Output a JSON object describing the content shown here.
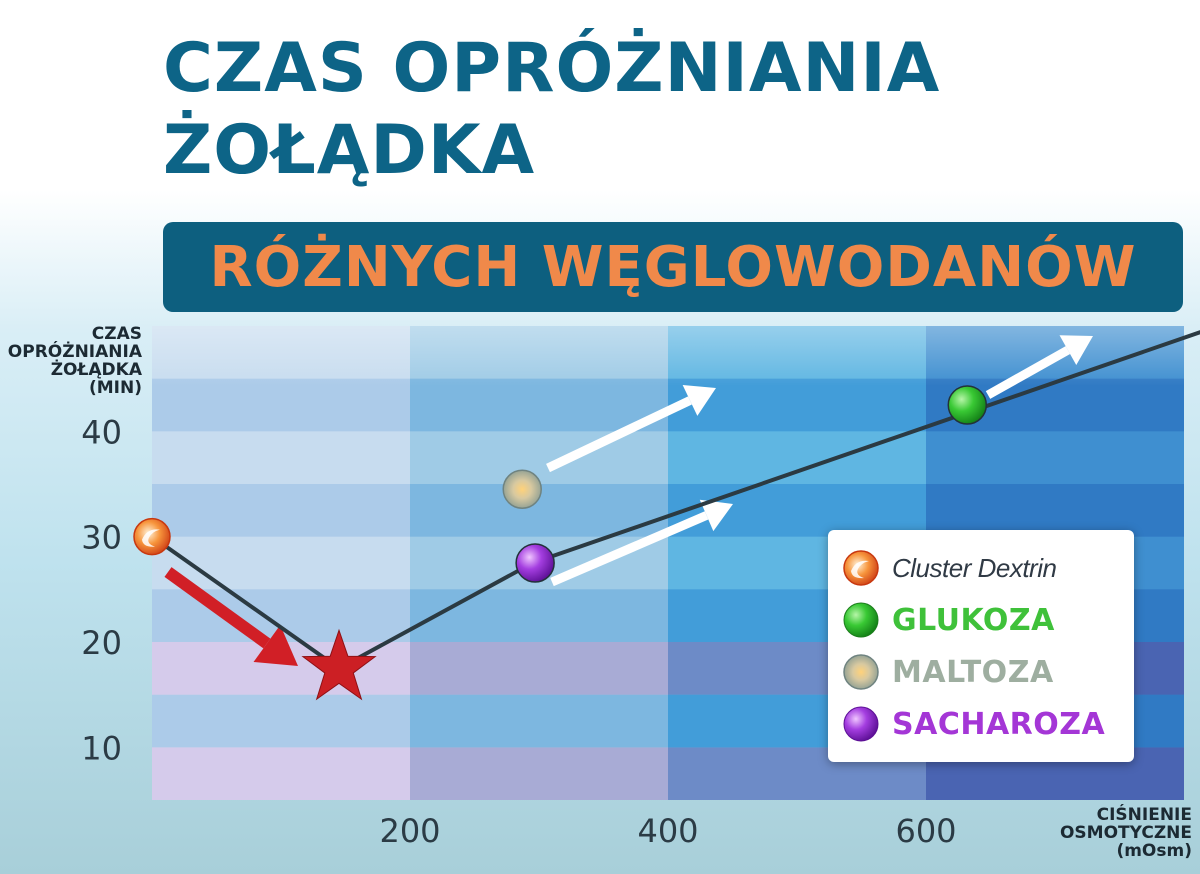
{
  "header": {
    "title": "CZAS OPRÓŻNIANIA\nŻOŁĄDKA",
    "subtitle": "RÓŻNYCH WĘGLOWODANÓW"
  },
  "chart_data": {
    "type": "line",
    "ylabel": "CZAS\nOPRÓŻNIANIA\nŻOŁĄDKA\n(MIN)",
    "xlabel": "CIŚNIENIE\nOSMOTYCZNE\n(mOsm)",
    "xlim": [
      0,
      800
    ],
    "ylim": [
      5,
      50
    ],
    "x_ticks": [
      200,
      400,
      600
    ],
    "y_ticks": [
      10,
      20,
      30,
      40
    ],
    "line": {
      "x": [
        0,
        145,
        295,
        850
      ],
      "y": [
        30,
        17.5,
        27.5,
        51
      ]
    },
    "points": [
      {
        "series": "Cluster Dextrin",
        "x": 0,
        "y": 30,
        "marker": "cluster",
        "color": "#e85a1f"
      },
      {
        "series": "min",
        "x": 145,
        "y": 17.5,
        "marker": "star",
        "color": "#cc1f24"
      },
      {
        "series": "MALTOZA",
        "x": 287,
        "y": 34.5,
        "marker": "circle",
        "color": "#a7b8a6"
      },
      {
        "series": "SACHAROZA",
        "x": 297,
        "y": 27.5,
        "marker": "circle",
        "color": "#9b30d8"
      },
      {
        "series": "GLUKOZA",
        "x": 632,
        "y": 42.5,
        "marker": "circle",
        "color": "#33c233"
      }
    ],
    "legend": {
      "position": "lower-right",
      "entries": [
        {
          "label": "Cluster Dextrin",
          "marker": "cluster",
          "color": "#e85a1f",
          "text_color": "#303a45"
        },
        {
          "label": "GLUKOZA",
          "marker": "circle",
          "color": "#33c233",
          "text_color": "#3fc13a"
        },
        {
          "label": "MALTOZA",
          "marker": "circle",
          "color": "#a7b8a6",
          "text_color": "#9eaea0"
        },
        {
          "label": "SACHAROZA",
          "marker": "circle",
          "color": "#9b30d8",
          "text_color": "#a436d6"
        }
      ]
    },
    "colors": {
      "title": "#0d6487",
      "subtitle_bg": "#0d5f7f",
      "subtitle_text": "#f0894a",
      "line": "#2b3a42",
      "red_arrow": "#d11f26",
      "white_arrow": "#ffffff"
    }
  }
}
